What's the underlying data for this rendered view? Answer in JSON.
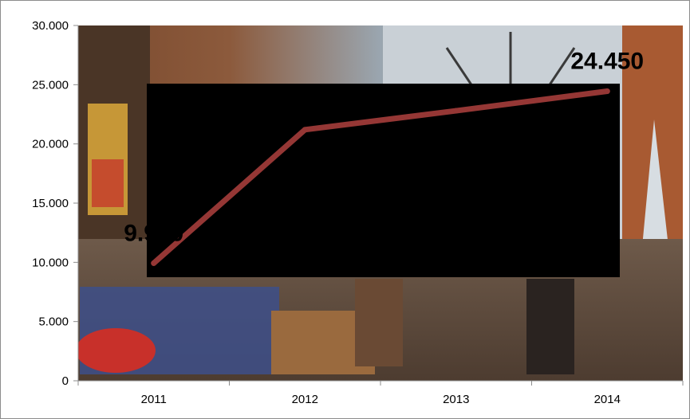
{
  "chart_data": {
    "type": "line",
    "categories": [
      "2011",
      "2012",
      "2013",
      "2014"
    ],
    "series": [
      {
        "values": [
          9930,
          21200,
          22800,
          24450
        ],
        "color": "#953735"
      }
    ],
    "data_labels": [
      {
        "category": "2011",
        "text": "9.930"
      },
      {
        "category": "2014",
        "text": "24.450"
      }
    ],
    "y_ticks": [
      "0",
      "5.000",
      "10.000",
      "15.000",
      "20.000",
      "25.000",
      "30.000"
    ],
    "ylim": [
      0,
      30000
    ],
    "grid": false,
    "legend": "none",
    "background": "photograph of a market scene with stacked tins and cloth; a black rectangle covers the middle of the plot",
    "colors": {
      "line": "#953735",
      "cover": "#000000",
      "axis": "#8c8c8c"
    }
  }
}
